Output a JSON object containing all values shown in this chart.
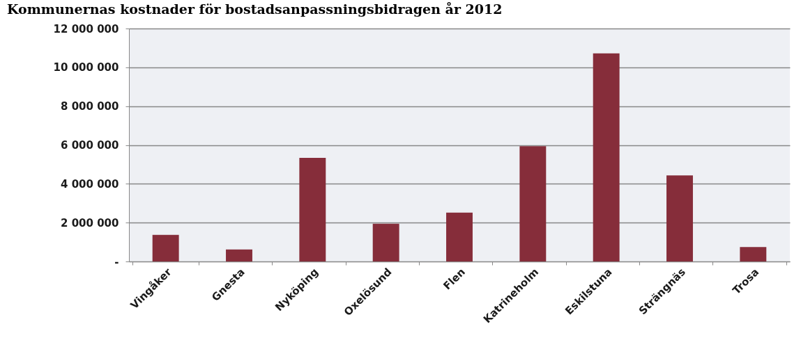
{
  "chart_data": {
    "type": "bar",
    "title": "Kommunernas kostnader för bostadsanpassningsbidragen år 2012",
    "categories": [
      "Vingåker",
      "Gnesta",
      "Nyköping",
      "Oxelösund",
      "Flen",
      "Katrineholm",
      "Eskilstuna",
      "Strängnäs",
      "Trosa"
    ],
    "values": [
      1370000,
      620000,
      5340000,
      1940000,
      2520000,
      5940000,
      10720000,
      4430000,
      740000
    ],
    "color": "#862d3a",
    "ylim": [
      0,
      12000000
    ],
    "yticks": [
      {
        "value": 0,
        "label": "-"
      },
      {
        "value": 2000000,
        "label": "2 000 000"
      },
      {
        "value": 4000000,
        "label": "4 000 000"
      },
      {
        "value": 6000000,
        "label": "6 000 000"
      },
      {
        "value": 8000000,
        "label": "8 000 000"
      },
      {
        "value": 10000000,
        "label": "10 000 000"
      },
      {
        "value": 12000000,
        "label": "12 000 000"
      }
    ],
    "grid": "y"
  }
}
